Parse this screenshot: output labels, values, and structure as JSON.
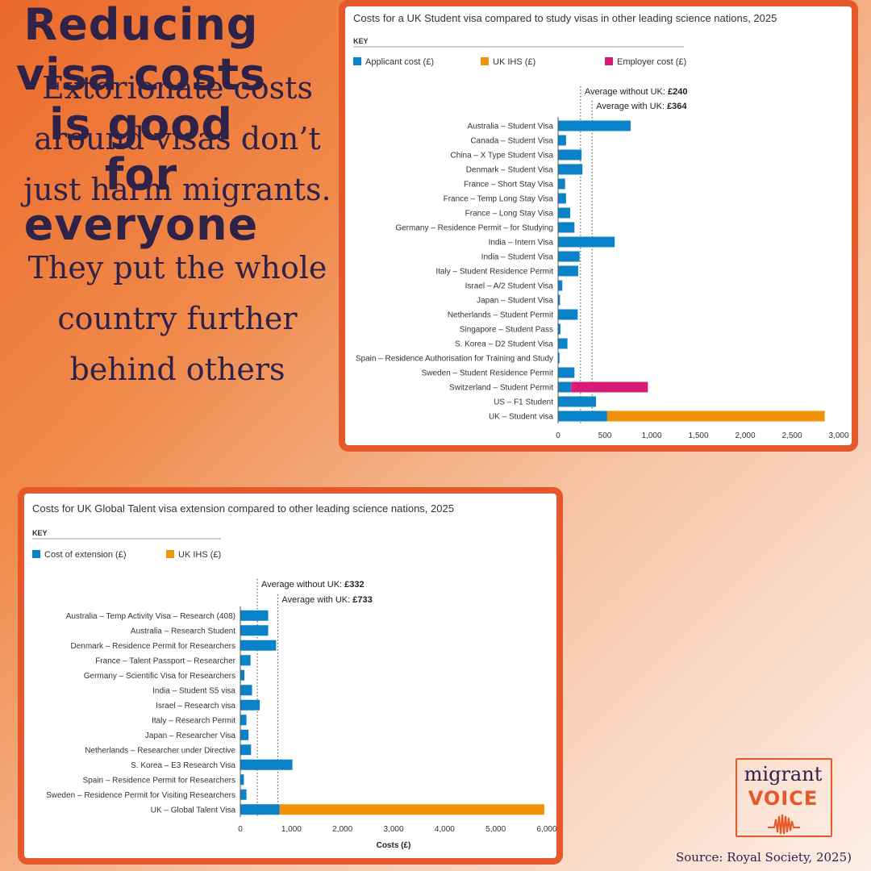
{
  "left_text": {
    "line1": "Extorionate costs",
    "line2": "around visas don’t",
    "line3": "just harm migrants.",
    "line4": "They put the whole",
    "line5": "country further",
    "line6": "behind others"
  },
  "right_text": {
    "line1": "Reducing",
    "line2": "visa costs",
    "line3": "is good",
    "line4": "for",
    "line5": "everyone"
  },
  "logo": {
    "word1": "migrant",
    "word2": "VOICE"
  },
  "source": "Source: Royal Society, 2025)",
  "colors": {
    "blue": "#0a82c8",
    "orange": "#f0920a",
    "magenta": "#d81b78",
    "border": "#e5582a",
    "text": "#2e2248"
  },
  "chart_data": [
    {
      "type": "bar",
      "orientation": "horizontal",
      "stacked": true,
      "title": "Costs for a UK Student visa compared to study visas in other leading science nations, 2025",
      "key_label": "KEY",
      "xlabel": "",
      "xlim": [
        0,
        3000
      ],
      "xticks": [
        0,
        500,
        1000,
        1500,
        2000,
        2500,
        3000
      ],
      "xtick_labels": [
        "0",
        "500",
        "1,000",
        "1,500",
        "2,000",
        "2,500",
        "3,000"
      ],
      "categories": [
        "Australia – Student Visa",
        "Canada – Student Visa",
        "China – X Type Student Visa",
        "Denmark – Student Visa",
        "France – Short Stay Visa",
        "France – Temp Long Stay Visa",
        "France – Long Stay Visa",
        "Germany – Residence Permit – for Studying",
        "India – Intern Visa",
        "India – Student Visa",
        "Italy – Student Residence Permit",
        "Israel – A/2 Student Visa",
        "Japan – Student Visa",
        "Netherlands – Student Permit",
        "Singapore – Student Pass",
        "S. Korea – D2 Student Visa",
        "Spain – Residence Authorisation for Training and Study",
        "Sweden – Student Residence Permit",
        "Switzerland – Student Permit",
        "US – F1 Student",
        "UK – Student visa"
      ],
      "series": [
        {
          "name": "Applicant cost (£)",
          "color": "#0a82c8",
          "values": [
            775,
            85,
            250,
            260,
            75,
            85,
            130,
            175,
            605,
            230,
            215,
            45,
            20,
            210,
            25,
            100,
            15,
            175,
            140,
            405,
            525
          ]
        },
        {
          "name": "UK IHS (£)",
          "color": "#f0920a",
          "values": [
            0,
            0,
            0,
            0,
            0,
            0,
            0,
            0,
            0,
            0,
            0,
            0,
            0,
            0,
            0,
            0,
            0,
            0,
            0,
            0,
            2325
          ]
        },
        {
          "name": "Employer cost (£)",
          "color": "#d81b78",
          "values": [
            0,
            0,
            0,
            0,
            0,
            0,
            0,
            0,
            0,
            0,
            0,
            0,
            0,
            0,
            0,
            0,
            0,
            0,
            820,
            0,
            0
          ]
        }
      ],
      "reference_lines": [
        {
          "label": "Average without UK:",
          "value_label": "£240",
          "value": 240
        },
        {
          "label": "Average with UK:",
          "value_label": "£364",
          "value": 364
        }
      ]
    },
    {
      "type": "bar",
      "orientation": "horizontal",
      "stacked": true,
      "title": "Costs for UK Global Talent visa extension compared to other leading science nations, 2025",
      "key_label": "KEY",
      "xlabel": "Costs (£)",
      "xlim": [
        0,
        6000
      ],
      "xticks": [
        0,
        1000,
        2000,
        3000,
        4000,
        5000,
        6000
      ],
      "xtick_labels": [
        "0",
        "1,000",
        "2,000",
        "3,000",
        "4,000",
        "5,000",
        "6,000"
      ],
      "categories": [
        "Australia – Temp Activity Visa – Research (408)",
        "Australia – Research Student",
        "Denmark – Residence Permit for Researchers",
        "France – Talent Passport – Researcher",
        "Germany – Scientific Visa for Researchers",
        "India – Student S5 visa",
        "Israel – Research visa",
        "Italy – Research Permit",
        "Japan – Researcher Visa",
        "Netherlands – Researcher under Directive",
        "S. Korea – E3 Research Visa",
        "Spain – Residence Permit for Researchers",
        "Sweden – Residence Permit for Visiting Researchers",
        "UK – Global Talent Visa"
      ],
      "series": [
        {
          "name": "Cost of extension (£)",
          "color": "#0a82c8",
          "values": [
            545,
            545,
            700,
            200,
            80,
            230,
            380,
            120,
            160,
            210,
            1020,
            70,
            120,
            770
          ]
        },
        {
          "name": "UK IHS (£)",
          "color": "#f0920a",
          "values": [
            0,
            0,
            0,
            0,
            0,
            0,
            0,
            0,
            0,
            0,
            0,
            0,
            0,
            5180
          ]
        }
      ],
      "reference_lines": [
        {
          "label": "Average without UK:",
          "value_label": "£332",
          "value": 332
        },
        {
          "label": "Average with UK:",
          "value_label": "£733",
          "value": 733
        }
      ]
    }
  ]
}
